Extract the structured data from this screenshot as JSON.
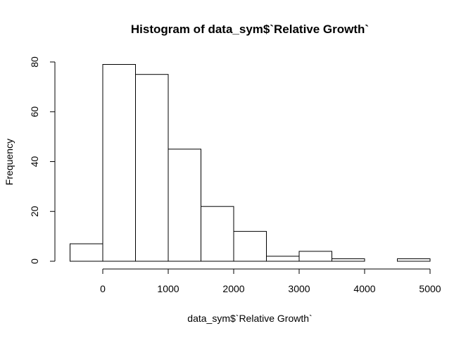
{
  "chart_data": {
    "type": "bar",
    "title": "Histogram of data_sym$`Relative Growth`",
    "xlabel": "data_sym$`Relative Growth`",
    "ylabel": "Frequency",
    "bins": [
      {
        "x0": -500,
        "x1": 0,
        "count": 7
      },
      {
        "x0": 0,
        "x1": 500,
        "count": 79
      },
      {
        "x0": 500,
        "x1": 1000,
        "count": 75
      },
      {
        "x0": 1000,
        "x1": 1500,
        "count": 45
      },
      {
        "x0": 1500,
        "x1": 2000,
        "count": 22
      },
      {
        "x0": 2000,
        "x1": 2500,
        "count": 12
      },
      {
        "x0": 2500,
        "x1": 3000,
        "count": 2
      },
      {
        "x0": 3000,
        "x1": 3500,
        "count": 4
      },
      {
        "x0": 3500,
        "x1": 4000,
        "count": 1
      },
      {
        "x0": 4000,
        "x1": 4500,
        "count": 0
      },
      {
        "x0": 4500,
        "x1": 5000,
        "count": 1
      }
    ],
    "xlim": [
      -500,
      5000
    ],
    "ylim": [
      0,
      80
    ],
    "x_ticks": [
      0,
      1000,
      2000,
      3000,
      4000,
      5000
    ],
    "y_ticks": [
      0,
      20,
      40,
      60,
      80
    ],
    "grid": false,
    "legend": "none",
    "bar_fill": "#ffffff",
    "bar_stroke": "#000000"
  }
}
